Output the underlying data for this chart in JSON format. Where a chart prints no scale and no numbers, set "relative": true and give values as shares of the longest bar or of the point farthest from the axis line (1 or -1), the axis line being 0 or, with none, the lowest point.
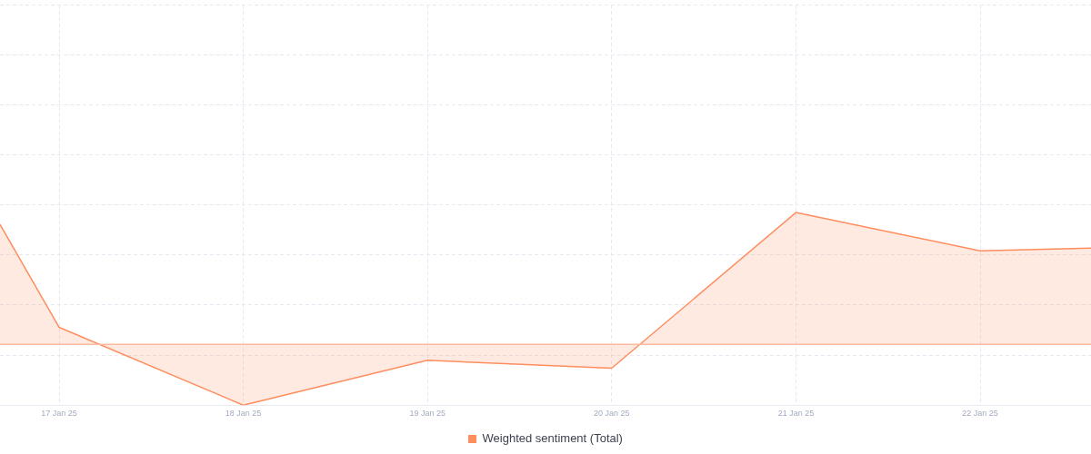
{
  "chart_data": {
    "type": "area",
    "relative": true,
    "x": [
      "--01-16T16:18",
      "--01-17",
      "--01-18",
      "--01-19",
      "--01-20",
      "--01-21",
      "--01-22",
      "--01-22T14:27"
    ],
    "series": [
      {
        "name": "Weighted sentiment (Total)",
        "color": "#ff8d5e",
        "values": [
          0.91,
          0.13,
          -0.46,
          -0.12,
          -0.18,
          1,
          0.71,
          0.73
        ]
      }
    ],
    "xlim": [
      "--01-16T16:18",
      "--01-22T14:27"
    ],
    "xticks": [
      {
        "value": "--01-17",
        "label": "17 Jan 25"
      },
      {
        "value": "--01-18",
        "label": "18 Jan 25"
      },
      {
        "value": "--01-19",
        "label": "19 Jan 25"
      },
      {
        "value": "--01-20",
        "label": "20 Jan 25"
      },
      {
        "value": "--01-21",
        "label": "21 Jan 25"
      },
      {
        "value": "--01-22",
        "label": "22 Jan 25"
      }
    ],
    "ref_lines": [
      {
        "axis": "y",
        "value": 0,
        "color": "#ffb99e"
      }
    ],
    "grid": true,
    "legend": "bottom",
    "marker": "none"
  }
}
